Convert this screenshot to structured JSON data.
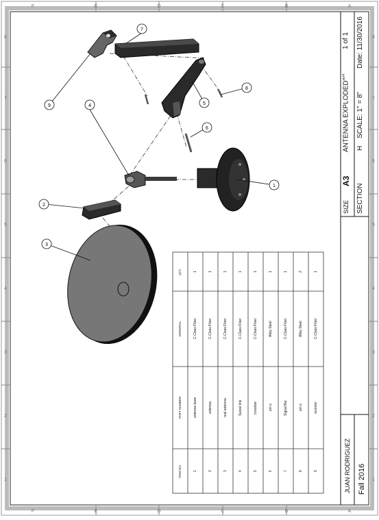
{
  "sheet": {
    "border_rows": [
      "A",
      "B",
      "C",
      "D",
      "E",
      "F"
    ],
    "border_cols": [
      "1",
      "2",
      "3",
      "4",
      "5",
      "6",
      "7",
      "8"
    ]
  },
  "title_block": {
    "designer": "JUAN RODRIGUEZ",
    "term": "Fall 2016",
    "size_label": "SIZE",
    "size_value": "A3",
    "title": "ANTENNA EXPLODED",
    "title_sup": "ver4",
    "sheet_of": "1 of 1",
    "section_label": "SECTION",
    "section_value": "H",
    "scale": "SCALE: 1\" = 8\"",
    "date": "Date: 11/30/2016"
  },
  "bom": {
    "headers": [
      "ITEM NO.",
      "PART NUMBER",
      "MATERIAL",
      "QTY."
    ],
    "rows": [
      [
        "1",
        "antenna base",
        "C-Class Fiber",
        "1"
      ],
      [
        "2",
        "antenna",
        "C-Class Fiber",
        "1"
      ],
      [
        "3",
        "real antenna",
        "C-Class Fiber",
        "1"
      ],
      [
        "4",
        "Swivel link",
        "C-Class Fiber",
        "1"
      ],
      [
        "5",
        "crossbar",
        "C-Class Fiber",
        "1"
      ],
      [
        "6",
        "pin a",
        "Alloy Steel",
        "1"
      ],
      [
        "7",
        "Signal Bar",
        "C-Class Fiber",
        "1"
      ],
      [
        "8",
        "pin a",
        "Alloy Steel",
        "2"
      ],
      [
        "9",
        "receiver",
        "C-Class Fiber",
        "1"
      ]
    ]
  },
  "balloons": [
    "1",
    "2",
    "3",
    "4",
    "5",
    "6",
    "7",
    "8",
    "9"
  ]
}
